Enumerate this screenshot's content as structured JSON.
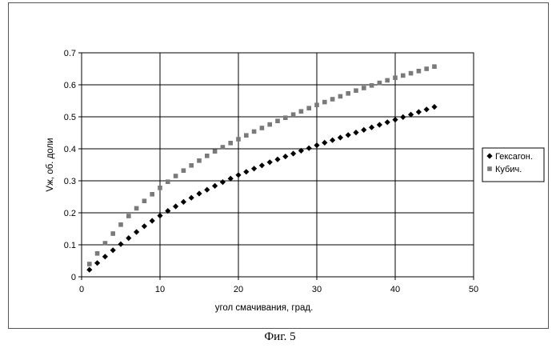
{
  "chart_data": {
    "type": "scatter",
    "xlabel": "угол смачивания, град.",
    "ylabel": "Vж, об. доли",
    "xlim": [
      0,
      50
    ],
    "ylim": [
      0,
      0.7
    ],
    "x_ticks": [
      "0",
      "10",
      "20",
      "30",
      "40",
      "50"
    ],
    "y_ticks": [
      "0",
      "0.1",
      "0.2",
      "0.3",
      "0.4",
      "0.5",
      "0.6",
      "0.7"
    ],
    "grid": true,
    "legend_position": "right",
    "series": [
      {
        "name": "Гексагон.",
        "marker": "diamond",
        "color": "#000000",
        "x": [
          1,
          2,
          3,
          4,
          5,
          6,
          7,
          8,
          9,
          10,
          11,
          12,
          13,
          14,
          15,
          16,
          17,
          18,
          19,
          20,
          21,
          22,
          23,
          24,
          25,
          26,
          27,
          28,
          29,
          30,
          31,
          32,
          33,
          34,
          35,
          36,
          37,
          38,
          39,
          40,
          41,
          42,
          43,
          44,
          45
        ],
        "y": [
          0.022,
          0.043,
          0.063,
          0.083,
          0.102,
          0.121,
          0.14,
          0.158,
          0.175,
          0.191,
          0.206,
          0.22,
          0.234,
          0.247,
          0.26,
          0.272,
          0.284,
          0.296,
          0.307,
          0.318,
          0.328,
          0.338,
          0.348,
          0.358,
          0.367,
          0.376,
          0.385,
          0.394,
          0.402,
          0.411,
          0.419,
          0.427,
          0.435,
          0.443,
          0.451,
          0.459,
          0.467,
          0.475,
          0.483,
          0.491,
          0.499,
          0.507,
          0.515,
          0.523,
          0.531
        ]
      },
      {
        "name": "Кубич.",
        "marker": "square",
        "color": "#7a7a7a",
        "x": [
          1,
          2,
          3,
          4,
          5,
          6,
          7,
          8,
          9,
          10,
          11,
          12,
          13,
          14,
          15,
          16,
          17,
          18,
          19,
          20,
          21,
          22,
          23,
          24,
          25,
          26,
          27,
          28,
          29,
          30,
          31,
          32,
          33,
          34,
          35,
          36,
          37,
          38,
          39,
          40,
          41,
          42,
          43,
          44,
          45
        ],
        "y": [
          0.04,
          0.073,
          0.105,
          0.135,
          0.163,
          0.19,
          0.214,
          0.237,
          0.258,
          0.278,
          0.297,
          0.315,
          0.332,
          0.348,
          0.363,
          0.378,
          0.392,
          0.405,
          0.418,
          0.43,
          0.442,
          0.454,
          0.465,
          0.476,
          0.487,
          0.497,
          0.507,
          0.517,
          0.527,
          0.537,
          0.546,
          0.555,
          0.564,
          0.573,
          0.582,
          0.59,
          0.598,
          0.606,
          0.614,
          0.622,
          0.629,
          0.636,
          0.643,
          0.65,
          0.657
        ]
      }
    ]
  },
  "caption": "Фиг. 5"
}
